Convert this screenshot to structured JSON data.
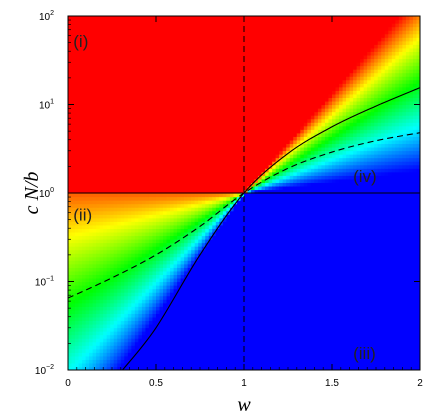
{
  "chart_data": {
    "type": "heatmap",
    "title": "",
    "xlabel": "w",
    "ylabel": "c N/b",
    "xlim": [
      0,
      2
    ],
    "ylim": [
      0.01,
      100
    ],
    "y_scale": "log",
    "x_ticks": [
      {
        "value": 0,
        "label": "0"
      },
      {
        "value": 0.5,
        "label": "0.5"
      },
      {
        "value": 1,
        "label": "1"
      },
      {
        "value": 1.5,
        "label": "1.5"
      },
      {
        "value": 2,
        "label": "2"
      }
    ],
    "y_ticks": [
      {
        "value": 0.01,
        "base": "10",
        "exp": "−2"
      },
      {
        "value": 0.1,
        "base": "10",
        "exp": "−1"
      },
      {
        "value": 1,
        "base": "10",
        "exp": "0"
      },
      {
        "value": 10,
        "base": "10",
        "exp": "1"
      },
      {
        "value": 100,
        "base": "10",
        "exp": "2"
      }
    ],
    "region_labels": [
      {
        "label": "(i)",
        "x": 0.03,
        "y": 50
      },
      {
        "label": "(ii)",
        "x": 0.03,
        "y": 0.55
      },
      {
        "label": "(iii)",
        "x": 1.62,
        "y": 0.015
      },
      {
        "label": "(iv)",
        "x": 1.62,
        "y": 1.5
      }
    ],
    "colormap": [
      "#0000ff",
      "#00ffff",
      "#00ff00",
      "#ffff00",
      "#ff0000"
    ],
    "regions": {
      "red": "w < 1 and cN/b > 1",
      "blue": "w > 1 and cN/b < 1",
      "gradient": "w < 1 and cN/b < 1, or w > 1 and cN/b > 1"
    },
    "curves": [
      {
        "name": "solid",
        "style": "solid",
        "points": [
          [
            0.31,
            0.01
          ],
          [
            0.5,
            0.03
          ],
          [
            0.75,
            0.2
          ],
          [
            1,
            1
          ],
          [
            1.25,
            2.8
          ],
          [
            1.5,
            5.6
          ],
          [
            1.75,
            9.6
          ],
          [
            2,
            15.5
          ]
        ]
      },
      {
        "name": "dashed",
        "style": "dashed",
        "points": [
          [
            0,
            0.065
          ],
          [
            0.25,
            0.11
          ],
          [
            0.5,
            0.2
          ],
          [
            0.75,
            0.42
          ],
          [
            1,
            1
          ],
          [
            1.25,
            1.9
          ],
          [
            1.5,
            2.9
          ],
          [
            1.75,
            3.9
          ],
          [
            2,
            4.8
          ]
        ]
      }
    ],
    "reference_lines": [
      {
        "orientation": "vertical",
        "value": 1,
        "style": "dashed"
      },
      {
        "orientation": "horizontal",
        "value": 1,
        "style": "solid"
      }
    ]
  }
}
